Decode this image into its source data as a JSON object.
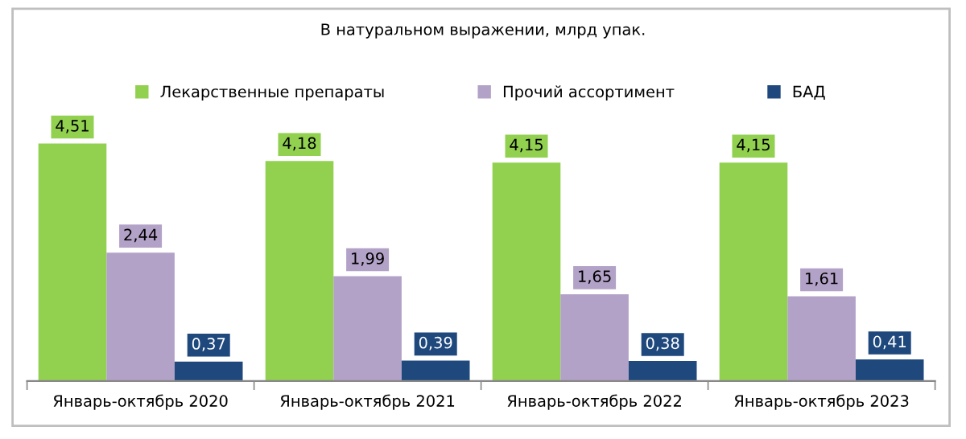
{
  "chart_data": {
    "type": "bar",
    "title": "В натуральном выражении, млрд упак.",
    "categories": [
      "Январь-октябрь 2020",
      "Январь-октябрь 2021",
      "Январь-октябрь 2022",
      "Январь-октябрь 2023"
    ],
    "series": [
      {
        "name": "Лекарственные препараты",
        "color": "#92d050",
        "values": [
          4.51,
          4.18,
          4.15,
          4.15
        ],
        "value_labels": [
          "4,51",
          "4,18",
          "4,15",
          "4,15"
        ]
      },
      {
        "name": "Прочий ассортимент",
        "color": "#b3a2c7",
        "values": [
          2.44,
          1.99,
          1.65,
          1.61
        ],
        "value_labels": [
          "2,44",
          "1,99",
          "1,65",
          "1,61"
        ]
      },
      {
        "name": "БАД",
        "color": "#1f497d",
        "values": [
          0.37,
          0.39,
          0.38,
          0.41
        ],
        "value_labels": [
          "0,37",
          "0,39",
          "0,38",
          "0,41"
        ]
      }
    ],
    "legend": "top",
    "grid": false
  }
}
